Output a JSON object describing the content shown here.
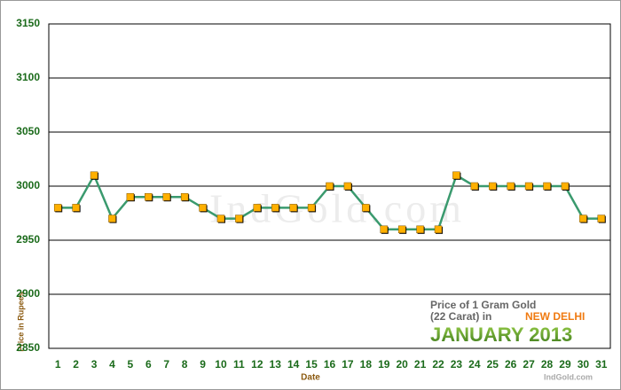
{
  "chart_data": {
    "type": "line",
    "title": "Price of 1 Gram Gold",
    "subtitle": "(22 Carat) in",
    "city": "NEW DELHI",
    "period": "JANUARY 2013",
    "source": "IndGold.com",
    "watermark": "IndGold.com",
    "x_label": "Date",
    "y_label": "Price in Rupees",
    "categories": [
      "1",
      "2",
      "3",
      "4",
      "5",
      "6",
      "7",
      "8",
      "9",
      "10",
      "11",
      "12",
      "13",
      "14",
      "15",
      "16",
      "17",
      "18",
      "19",
      "20",
      "21",
      "22",
      "23",
      "24",
      "25",
      "26",
      "27",
      "28",
      "29",
      "30",
      "31"
    ],
    "series": [
      {
        "name": "Price",
        "color": "#3a9a6e",
        "marker_color": "#ffb000",
        "values": [
          2980,
          2980,
          3010,
          2970,
          2990,
          2990,
          2990,
          2990,
          2980,
          2970,
          2970,
          2980,
          2980,
          2980,
          2980,
          3000,
          3000,
          2980,
          2960,
          2960,
          2960,
          2960,
          3010,
          3000,
          3000,
          3000,
          3000,
          3000,
          3000,
          2970,
          2970
        ]
      }
    ],
    "ylim": [
      2850,
      3150
    ],
    "yticks": [
      2850,
      2900,
      2950,
      3000,
      3050,
      3100,
      3150
    ],
    "grid": true
  }
}
